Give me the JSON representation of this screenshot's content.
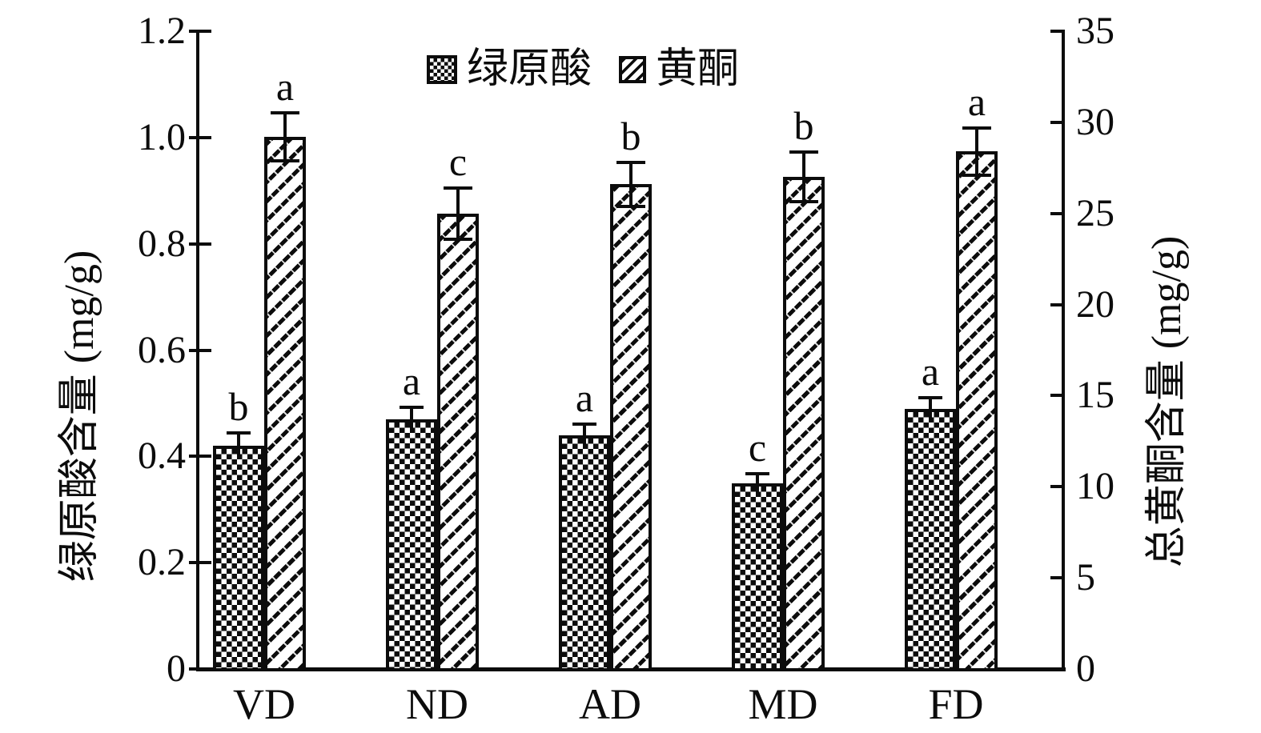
{
  "colors": {
    "ink": "#0c0c0c",
    "background": "#ffffff"
  },
  "chart_data": {
    "type": "bar",
    "title": "",
    "categories": [
      "VD",
      "ND",
      "AD",
      "MD",
      "FD"
    ],
    "series": [
      {
        "name": "绿原酸",
        "axis": "left",
        "pattern": "checker",
        "values": [
          0.42,
          0.47,
          0.44,
          0.35,
          0.49
        ],
        "errors": [
          0.024,
          0.023,
          0.02,
          0.018,
          0.021
        ],
        "sig_letters": [
          "b",
          "a",
          "a",
          "c",
          "a"
        ]
      },
      {
        "name": "黄酮",
        "axis": "right",
        "pattern": "hatch",
        "values": [
          29.2,
          25.0,
          26.6,
          27.0,
          28.4
        ],
        "errors": [
          1.3,
          1.4,
          1.2,
          1.35,
          1.3
        ],
        "sig_letters": [
          "a",
          "c",
          "b",
          "b",
          "a"
        ]
      }
    ],
    "left_axis": {
      "label": "绿原酸含量 (mg/g)",
      "min": 0,
      "max": 1.2,
      "ticks": [
        "0",
        "0.2",
        "0.4",
        "0.6",
        "0.8",
        "1.0",
        "1.2"
      ]
    },
    "right_axis": {
      "label": "总黄酮含量 (mg/g)",
      "min": 0,
      "max": 35,
      "ticks": [
        "0",
        "5",
        "10",
        "15",
        "20",
        "25",
        "30",
        "35"
      ]
    },
    "legend": {
      "position": "top-center",
      "items": [
        "绿原酸",
        "黄酮"
      ]
    },
    "grid": false,
    "error_bars": true
  }
}
